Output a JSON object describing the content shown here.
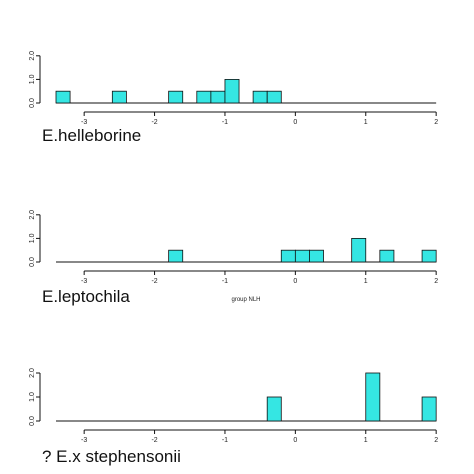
{
  "colors": {
    "bar_fill": "#35e6e3",
    "bar_stroke": "#111111",
    "axis": "#111111"
  },
  "chart_data": [
    {
      "type": "bar",
      "panel_label": "E.helleborine",
      "xlabel": "",
      "x_ticks": [
        -3,
        -2,
        -1,
        0,
        1,
        2
      ],
      "xlim": [
        -3.4,
        2.0
      ],
      "bin_width": 0.2,
      "y_ticks": [
        "0.0",
        "1.0",
        "2.0"
      ],
      "ylim": [
        0,
        2.5
      ],
      "bars": [
        {
          "x": -3.3,
          "value": 0.5
        },
        {
          "x": -2.5,
          "value": 0.5
        },
        {
          "x": -1.7,
          "value": 0.5
        },
        {
          "x": -1.3,
          "value": 0.5
        },
        {
          "x": -1.1,
          "value": 0.5
        },
        {
          "x": -0.9,
          "value": 1.0
        },
        {
          "x": -0.5,
          "value": 0.5
        },
        {
          "x": -0.3,
          "value": 0.5
        }
      ]
    },
    {
      "type": "bar",
      "panel_label": "E.leptochila",
      "xlabel": "group NLH",
      "x_ticks": [
        -3,
        -2,
        -1,
        0,
        1,
        2
      ],
      "xlim": [
        -3.4,
        2.0
      ],
      "bin_width": 0.2,
      "y_ticks": [
        "0.0",
        "1.0",
        "2.0"
      ],
      "ylim": [
        0,
        2.5
      ],
      "bars": [
        {
          "x": -1.7,
          "value": 0.5
        },
        {
          "x": -0.1,
          "value": 0.5
        },
        {
          "x": 0.1,
          "value": 0.5
        },
        {
          "x": 0.3,
          "value": 0.5
        },
        {
          "x": 0.9,
          "value": 1.0
        },
        {
          "x": 1.3,
          "value": 0.5
        },
        {
          "x": 1.9,
          "value": 0.5
        }
      ]
    },
    {
      "type": "bar",
      "panel_label": "? E.x stephensonii",
      "xlabel": "",
      "x_ticks": [
        -3,
        -2,
        -1,
        0,
        1,
        2
      ],
      "xlim": [
        -3.4,
        2.0
      ],
      "bin_width": 0.2,
      "y_ticks": [
        "0.0",
        "1.0",
        "2.0"
      ],
      "ylim": [
        0,
        2.5
      ],
      "bars": [
        {
          "x": -0.3,
          "value": 1.0
        },
        {
          "x": 1.1,
          "value": 2.0
        },
        {
          "x": 1.9,
          "value": 1.0
        }
      ]
    }
  ]
}
